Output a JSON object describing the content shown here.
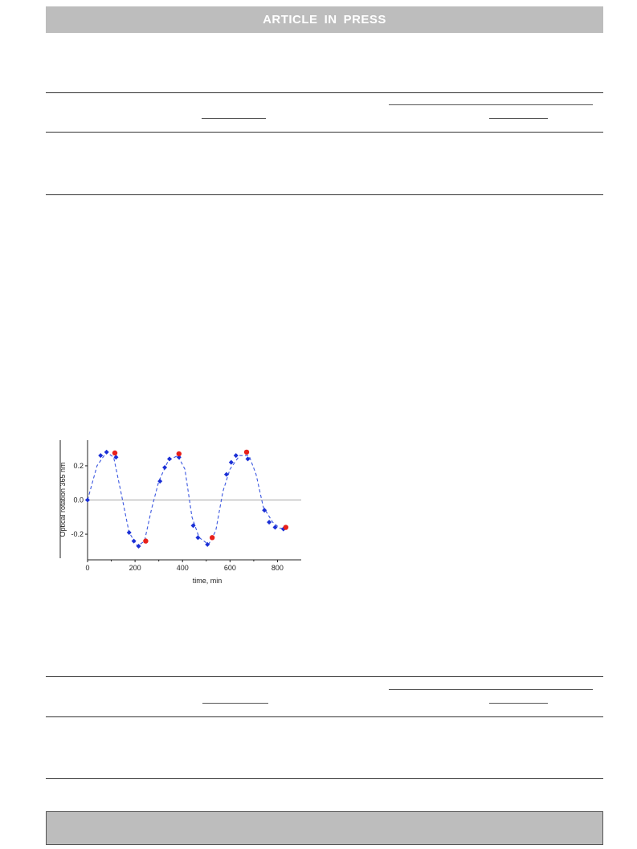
{
  "header": {
    "banner_words": [
      "ARTICLE",
      "IN",
      "PRESS"
    ]
  },
  "chart_data": {
    "type": "scatter",
    "xlabel": "time, min",
    "ylabel": "Optical rotation 365 nm",
    "xlim": [
      0,
      900
    ],
    "ylim": [
      -0.35,
      0.35
    ],
    "x_ticks": [
      0,
      200,
      400,
      600,
      800
    ],
    "y_ticks": [
      -0.2,
      0.0,
      0.2
    ],
    "y_tick_labels": [
      "-0.2",
      "0.0",
      "0.2"
    ],
    "x_tick_labels": [
      "0",
      "200",
      "400",
      "600",
      "800"
    ],
    "zero_line": true,
    "series": [
      {
        "marker": "diamond",
        "color": "#1a2fd6",
        "x": [
          0,
          55,
          80,
          120,
          175,
          195,
          215,
          305,
          325,
          345,
          385,
          445,
          465,
          505,
          585,
          605,
          625,
          675,
          745,
          765,
          790,
          825
        ],
        "y": [
          0.0,
          0.26,
          0.28,
          0.25,
          -0.19,
          -0.24,
          -0.27,
          0.11,
          0.19,
          0.24,
          0.25,
          -0.15,
          -0.22,
          -0.26,
          0.15,
          0.22,
          0.26,
          0.24,
          -0.06,
          -0.13,
          -0.16,
          -0.17
        ]
      },
      {
        "marker": "circle",
        "color": "#e8201a",
        "x": [
          115,
          245,
          385,
          525,
          670,
          835
        ],
        "y": [
          0.275,
          -0.24,
          0.27,
          -0.22,
          0.28,
          -0.16
        ]
      }
    ],
    "fit_line": {
      "style": "dashed",
      "color": "#3a56e0",
      "x": [
        0,
        40,
        80,
        110,
        140,
        175,
        210,
        240,
        270,
        300,
        340,
        380,
        410,
        440,
        470,
        510,
        540,
        570,
        600,
        640,
        680,
        710,
        740,
        780,
        810,
        835
      ],
      "y": [
        0.0,
        0.2,
        0.28,
        0.25,
        0.05,
        -0.19,
        -0.27,
        -0.24,
        -0.05,
        0.11,
        0.23,
        0.26,
        0.18,
        -0.1,
        -0.22,
        -0.26,
        -0.18,
        0.05,
        0.18,
        0.26,
        0.26,
        0.15,
        -0.04,
        -0.13,
        -0.165,
        -0.17
      ]
    }
  }
}
